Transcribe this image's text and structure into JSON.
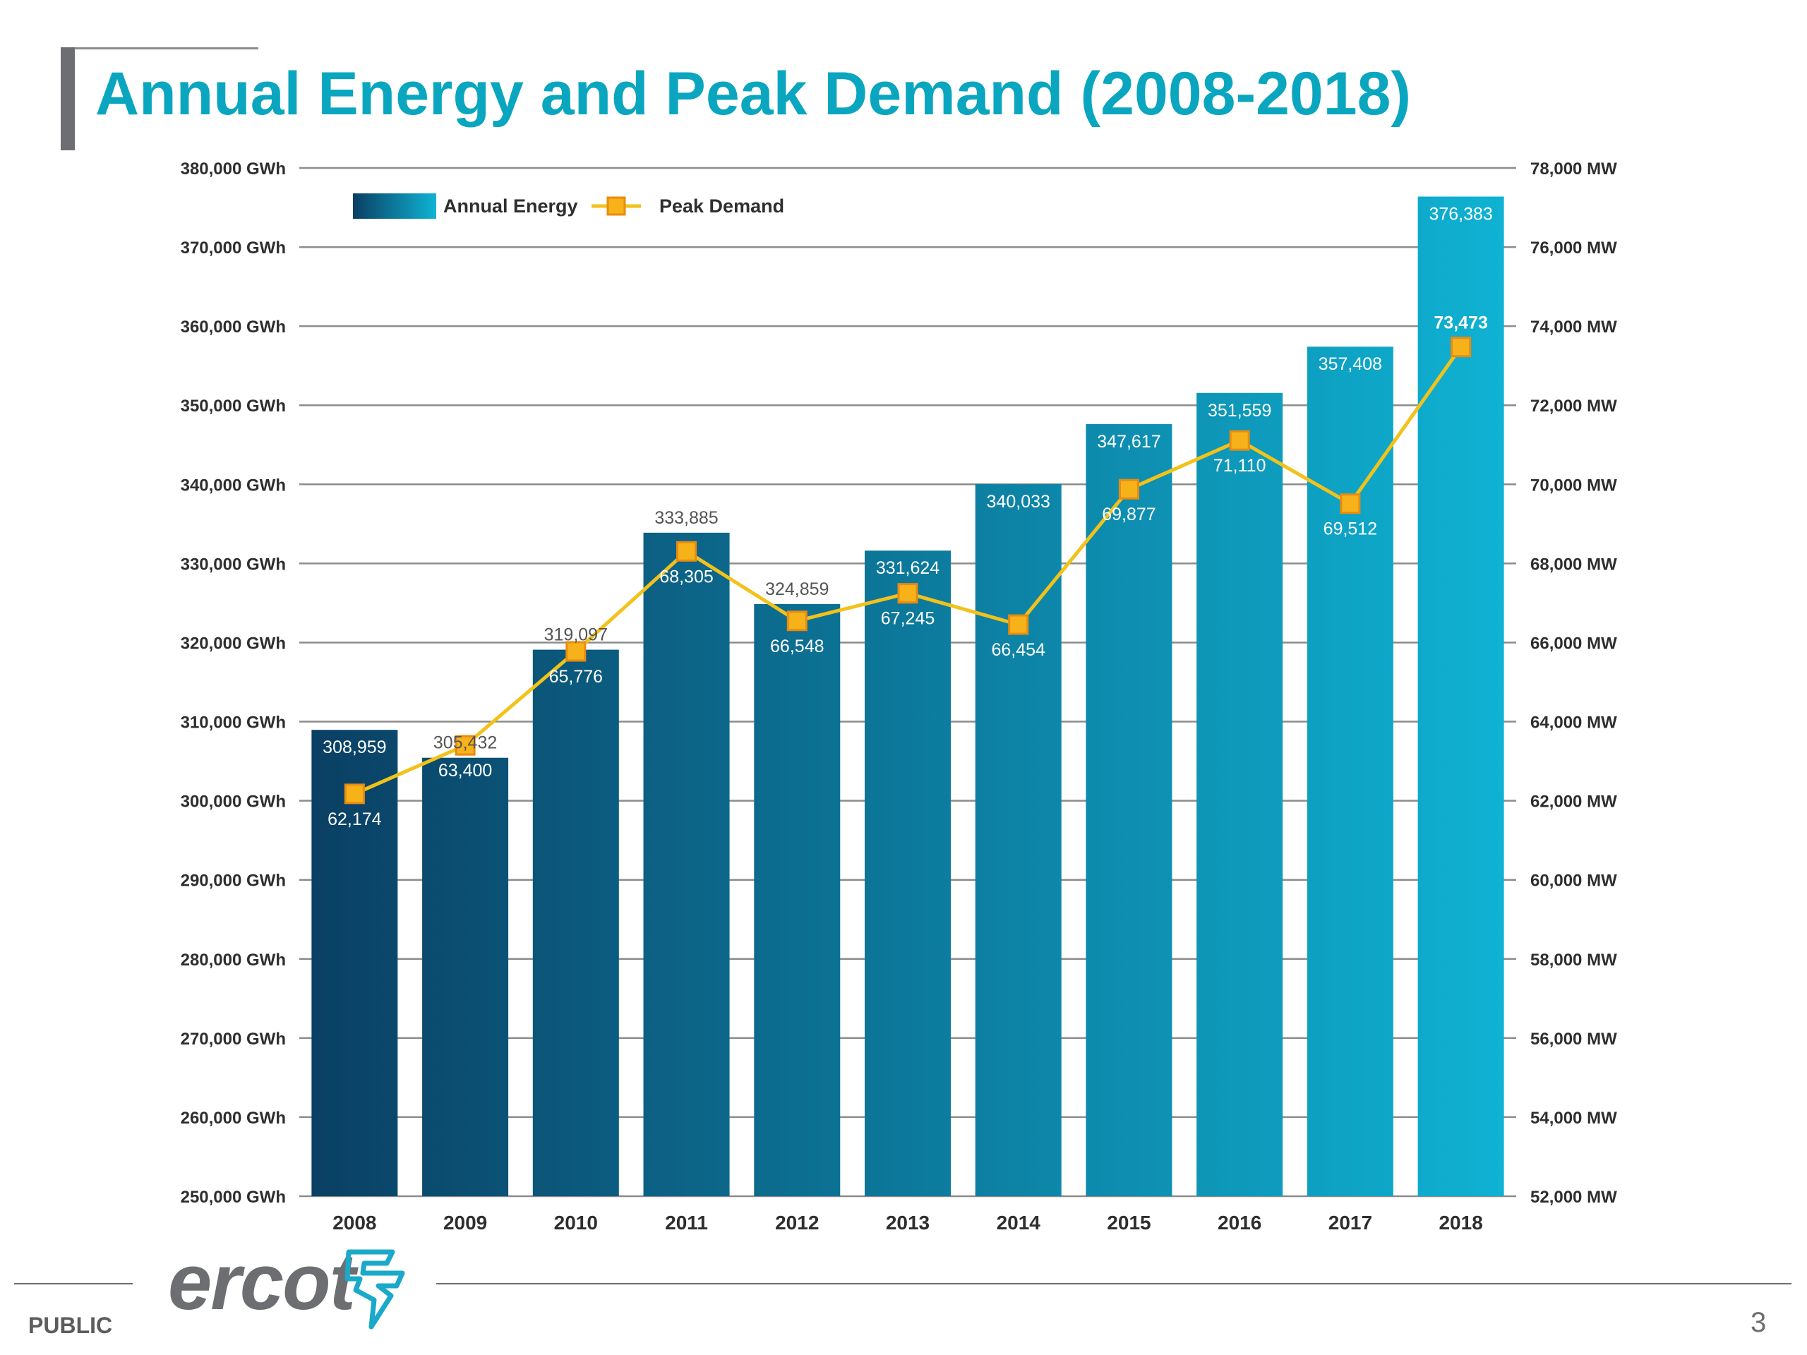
{
  "slide": {
    "title": "Annual Energy and Peak Demand (2008-2018)",
    "footer_label": "PUBLIC",
    "page_number": "3",
    "logo_text": "ercot"
  },
  "colors": {
    "title": "#0aa6bf",
    "bar_dark": "#0a3f63",
    "bar_light": "#0fb3d4",
    "line": "#f2c21b",
    "marker_fill": "#f7b21a",
    "marker_stroke": "#e98b11",
    "grid": "#8c8c8c",
    "axis_text": "#2e2e2e"
  },
  "chart_data": {
    "type": "bar",
    "categories": [
      "2008",
      "2009",
      "2010",
      "2011",
      "2012",
      "2013",
      "2014",
      "2015",
      "2016",
      "2017",
      "2018"
    ],
    "series": [
      {
        "name": "Annual Energy",
        "type": "bar",
        "axis": "left",
        "values": [
          308959,
          305432,
          319097,
          333885,
          324859,
          331624,
          340033,
          347617,
          351559,
          357408,
          376383
        ],
        "labels": [
          "308,959",
          "305,432",
          "319,097",
          "333,885",
          "324,859",
          "331,624",
          "340,033",
          "347,617",
          "351,559",
          "357,408",
          "376,383"
        ]
      },
      {
        "name": "Peak Demand",
        "type": "line",
        "axis": "right",
        "values": [
          62174,
          63400,
          65776,
          68305,
          66548,
          67245,
          66454,
          69877,
          71110,
          69512,
          73473
        ],
        "labels": [
          "62,174",
          "63,400",
          "65,776",
          "68,305",
          "66,548",
          "67,245",
          "66,454",
          "69,877",
          "71,110",
          "69,512",
          "73,473"
        ]
      }
    ],
    "y_left": {
      "lim": [
        250000,
        380000
      ],
      "ticks": [
        380000,
        370000,
        360000,
        350000,
        340000,
        330000,
        320000,
        310000,
        300000,
        290000,
        280000,
        270000,
        260000,
        250000
      ],
      "tick_labels": [
        "380,000 GWh",
        "370,000 GWh",
        "360,000 GWh",
        "350,000 GWh",
        "340,000 GWh",
        "330,000 GWh",
        "320,000 GWh",
        "310,000 GWh",
        "300,000 GWh",
        "290,000 GWh",
        "280,000 GWh",
        "270,000 GWh",
        "260,000 GWh",
        "250,000 GWh"
      ]
    },
    "y_right": {
      "lim": [
        52000,
        78000
      ],
      "ticks": [
        78000,
        76000,
        74000,
        72000,
        70000,
        68000,
        66000,
        64000,
        62000,
        60000,
        58000,
        56000,
        54000,
        52000
      ],
      "tick_labels": [
        "78,000 MW",
        "76,000 MW",
        "74,000 MW",
        "72,000 MW",
        "70,000 MW",
        "68,000 MW",
        "66,000 MW",
        "64,000 MW",
        "62,000 MW",
        "60,000 MW",
        "58,000 MW",
        "56,000 MW",
        "54,000 MW",
        "52,000 MW"
      ]
    },
    "grid": true,
    "legend_position": "top-left"
  }
}
